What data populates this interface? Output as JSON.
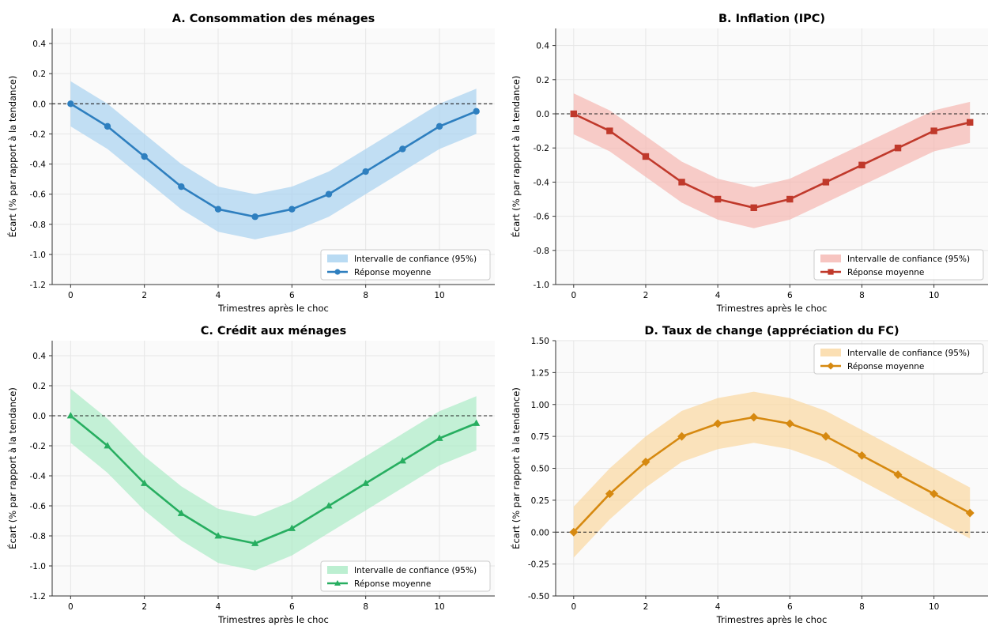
{
  "figure": {
    "background": "#ffffff",
    "plot_background": "#fafafa",
    "grid_color": "#e6e6e6",
    "axis_color": "#333333"
  },
  "chart_data": [
    {
      "type": "line",
      "panel": "A",
      "title": "A. Consommation des ménages",
      "xlabel": "Trimestres après le choc",
      "ylabel": "Écart (% par rapport à la tendance)",
      "x": [
        0,
        1,
        2,
        3,
        4,
        5,
        6,
        7,
        8,
        9,
        10,
        11
      ],
      "xlim": [
        -0.5,
        11.5
      ],
      "xticks": [
        0,
        2,
        4,
        6,
        8,
        10
      ],
      "xtick_labels": [
        "0",
        "2",
        "4",
        "6",
        "8",
        "10"
      ],
      "ylim": [
        -1.2,
        0.5
      ],
      "yticks": [
        -1.2,
        -1.0,
        -0.8,
        -0.6,
        -0.4,
        -0.2,
        0.0,
        0.2,
        0.4
      ],
      "ytick_labels": [
        "-1.2",
        "-1.0",
        "-0.8",
        "-0.6",
        "-0.4",
        "-0.2",
        "0.0",
        "0.2",
        "0.4"
      ],
      "reference_line": 0,
      "grid": true,
      "legend_position": "bottom-right",
      "series": [
        {
          "name": "Réponse moyenne",
          "values": [
            0.0,
            -0.15,
            -0.35,
            -0.55,
            -0.7,
            -0.75,
            -0.7,
            -0.6,
            -0.45,
            -0.3,
            -0.15,
            -0.05
          ],
          "color": "#2e7fbf",
          "marker": "circle"
        }
      ],
      "band": {
        "name": "Intervalle de confiance (95%)",
        "lower": [
          -0.15,
          -0.3,
          -0.5,
          -0.7,
          -0.85,
          -0.9,
          -0.85,
          -0.75,
          -0.6,
          -0.45,
          -0.3,
          -0.2
        ],
        "upper": [
          0.15,
          0.0,
          -0.2,
          -0.4,
          -0.55,
          -0.6,
          -0.55,
          -0.45,
          -0.3,
          -0.15,
          0.0,
          0.1
        ],
        "color": "#a8d2f0"
      }
    },
    {
      "type": "line",
      "panel": "B",
      "title": "B. Inflation (IPC)",
      "xlabel": "Trimestres après le choc",
      "ylabel": "Écart (% par rapport à la tendance)",
      "x": [
        0,
        1,
        2,
        3,
        4,
        5,
        6,
        7,
        8,
        9,
        10,
        11
      ],
      "xlim": [
        -0.5,
        11.5
      ],
      "xticks": [
        0,
        2,
        4,
        6,
        8,
        10
      ],
      "xtick_labels": [
        "0",
        "2",
        "4",
        "6",
        "8",
        "10"
      ],
      "ylim": [
        -1.0,
        0.5
      ],
      "yticks": [
        -1.0,
        -0.8,
        -0.6,
        -0.4,
        -0.2,
        0.0,
        0.2,
        0.4
      ],
      "ytick_labels": [
        "-1.0",
        "-0.8",
        "-0.6",
        "-0.4",
        "-0.2",
        "0.0",
        "0.2",
        "0.4"
      ],
      "reference_line": 0,
      "grid": true,
      "legend_position": "bottom-right",
      "series": [
        {
          "name": "Réponse moyenne",
          "values": [
            0.0,
            -0.1,
            -0.25,
            -0.4,
            -0.5,
            -0.55,
            -0.5,
            -0.4,
            -0.3,
            -0.2,
            -0.1,
            -0.05
          ],
          "color": "#c0392b",
          "marker": "square"
        }
      ],
      "band": {
        "name": "Intervalle de confiance (95%)",
        "lower": [
          -0.12,
          -0.22,
          -0.37,
          -0.52,
          -0.62,
          -0.67,
          -0.62,
          -0.52,
          -0.42,
          -0.32,
          -0.22,
          -0.17
        ],
        "upper": [
          0.12,
          0.02,
          -0.13,
          -0.28,
          -0.38,
          -0.43,
          -0.38,
          -0.28,
          -0.18,
          -0.08,
          0.02,
          0.07
        ],
        "color": "#f5b7b1"
      }
    },
    {
      "type": "line",
      "panel": "C",
      "title": "C. Crédit aux ménages",
      "xlabel": "Trimestres après le choc",
      "ylabel": "Écart (% par rapport à la tendance)",
      "x": [
        0,
        1,
        2,
        3,
        4,
        5,
        6,
        7,
        8,
        9,
        10,
        11
      ],
      "xlim": [
        -0.5,
        11.5
      ],
      "xticks": [
        0,
        2,
        4,
        6,
        8,
        10
      ],
      "xtick_labels": [
        "0",
        "2",
        "4",
        "6",
        "8",
        "10"
      ],
      "ylim": [
        -1.2,
        0.5
      ],
      "yticks": [
        -1.2,
        -1.0,
        -0.8,
        -0.6,
        -0.4,
        -0.2,
        0.0,
        0.2,
        0.4
      ],
      "ytick_labels": [
        "-1.2",
        "-1.0",
        "-0.8",
        "-0.6",
        "-0.4",
        "-0.2",
        "0.0",
        "0.2",
        "0.4"
      ],
      "reference_line": 0,
      "grid": true,
      "legend_position": "bottom-right",
      "series": [
        {
          "name": "Réponse moyenne",
          "values": [
            0.0,
            -0.2,
            -0.45,
            -0.65,
            -0.8,
            -0.85,
            -0.75,
            -0.6,
            -0.45,
            -0.3,
            -0.15,
            -0.05
          ],
          "color": "#27ae60",
          "marker": "triangle"
        }
      ],
      "band": {
        "name": "Intervalle de confiance (95%)",
        "lower": [
          -0.18,
          -0.38,
          -0.63,
          -0.83,
          -0.98,
          -1.03,
          -0.93,
          -0.78,
          -0.63,
          -0.48,
          -0.33,
          -0.23
        ],
        "upper": [
          0.18,
          -0.02,
          -0.27,
          -0.47,
          -0.62,
          -0.67,
          -0.57,
          -0.42,
          -0.27,
          -0.12,
          0.03,
          0.13
        ],
        "color": "#abebc6"
      }
    },
    {
      "type": "line",
      "panel": "D",
      "title": "D. Taux de change (appréciation du FC)",
      "xlabel": "Trimestres après le choc",
      "ylabel": "Écart (% par rapport à la tendance)",
      "x": [
        0,
        1,
        2,
        3,
        4,
        5,
        6,
        7,
        8,
        9,
        10,
        11
      ],
      "xlim": [
        -0.5,
        11.5
      ],
      "xticks": [
        0,
        2,
        4,
        6,
        8,
        10
      ],
      "xtick_labels": [
        "0",
        "2",
        "4",
        "6",
        "8",
        "10"
      ],
      "ylim": [
        -0.5,
        1.5
      ],
      "yticks": [
        -0.5,
        -0.25,
        0.0,
        0.25,
        0.5,
        0.75,
        1.0,
        1.25,
        1.5
      ],
      "ytick_labels": [
        "-0.50",
        "-0.25",
        "0.00",
        "0.25",
        "0.50",
        "0.75",
        "1.00",
        "1.25",
        "1.50"
      ],
      "reference_line": 0,
      "grid": true,
      "legend_position": "top-right",
      "series": [
        {
          "name": "Réponse moyenne",
          "values": [
            0.0,
            0.3,
            0.55,
            0.75,
            0.85,
            0.9,
            0.85,
            0.75,
            0.6,
            0.45,
            0.3,
            0.15
          ],
          "color": "#d68910",
          "marker": "diamond"
        }
      ],
      "band": {
        "name": "Intervalle de confiance (95%)",
        "lower": [
          -0.2,
          0.1,
          0.35,
          0.55,
          0.65,
          0.7,
          0.65,
          0.55,
          0.4,
          0.25,
          0.1,
          -0.05
        ],
        "upper": [
          0.2,
          0.5,
          0.75,
          0.95,
          1.05,
          1.1,
          1.05,
          0.95,
          0.8,
          0.65,
          0.5,
          0.35
        ],
        "color": "#fad7a0"
      }
    }
  ]
}
